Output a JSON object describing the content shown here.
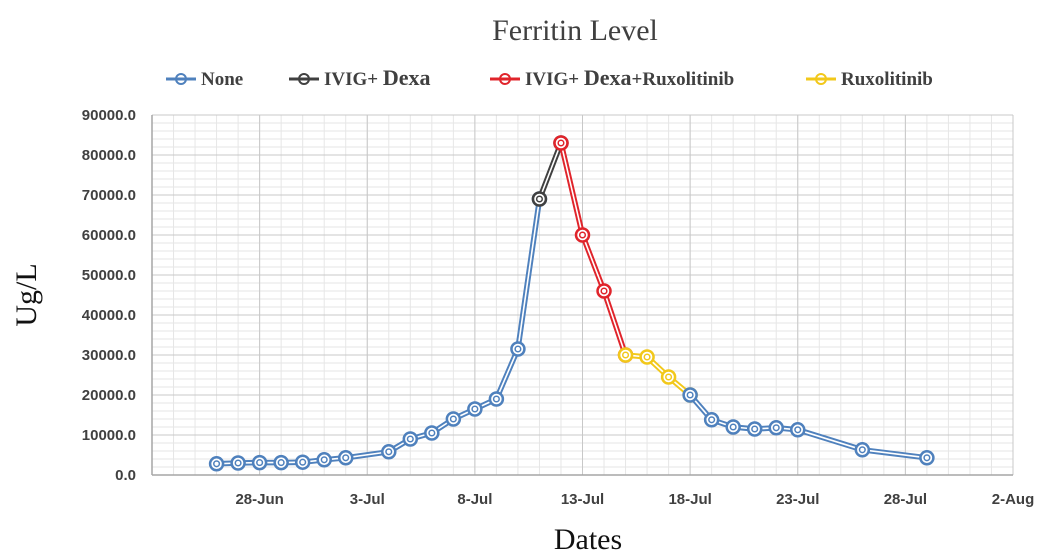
{
  "chart_data": {
    "type": "line",
    "title": "Ferritin Level",
    "xlabel": "Dates",
    "ylabel": "Ug/L",
    "ylim": [
      0,
      90000
    ],
    "y_ticks": [
      "0.0",
      "10000.0",
      "20000.0",
      "30000.0",
      "40000.0",
      "50000.0",
      "60000.0",
      "70000.0",
      "80000.0",
      "90000.0"
    ],
    "x_range": [
      "2020-06-23",
      "2020-08-02"
    ],
    "x_ticks": [
      {
        "date": "2020-06-28",
        "label": "28-Jun"
      },
      {
        "date": "2020-07-03",
        "label": "3-Jul"
      },
      {
        "date": "2020-07-08",
        "label": "8-Jul"
      },
      {
        "date": "2020-07-13",
        "label": "13-Jul"
      },
      {
        "date": "2020-07-18",
        "label": "18-Jul"
      },
      {
        "date": "2020-07-23",
        "label": "23-Jul"
      },
      {
        "date": "2020-07-28",
        "label": "28-Jul"
      },
      {
        "date": "2020-08-02",
        "label": "2-Aug"
      }
    ],
    "grid": true,
    "legend": "top",
    "series": [
      {
        "name": "None",
        "color": "#4f81bd",
        "points": [
          {
            "x": "2020-06-26",
            "y": 2800
          },
          {
            "x": "2020-06-27",
            "y": 3000
          },
          {
            "x": "2020-06-28",
            "y": 3100
          },
          {
            "x": "2020-06-29",
            "y": 3100
          },
          {
            "x": "2020-06-30",
            "y": 3200
          },
          {
            "x": "2020-07-01",
            "y": 3800
          },
          {
            "x": "2020-07-02",
            "y": 4300
          },
          {
            "x": "2020-07-04",
            "y": 5800
          },
          {
            "x": "2020-07-05",
            "y": 9000
          },
          {
            "x": "2020-07-06",
            "y": 10500
          },
          {
            "x": "2020-07-07",
            "y": 14000
          },
          {
            "x": "2020-07-08",
            "y": 16500
          },
          {
            "x": "2020-07-09",
            "y": 19000
          },
          {
            "x": "2020-07-10",
            "y": 31500
          },
          {
            "x": "2020-07-11",
            "y": 69000
          }
        ]
      },
      {
        "name": "IVIG+ Dexa",
        "color": "#404040",
        "points": [
          {
            "x": "2020-07-11",
            "y": 69000
          },
          {
            "x": "2020-07-12",
            "y": 83000
          }
        ]
      },
      {
        "name": "IVIG+ Dexa+Ruxolitinib",
        "color": "#e0242b",
        "points": [
          {
            "x": "2020-07-12",
            "y": 83000
          },
          {
            "x": "2020-07-13",
            "y": 60000
          },
          {
            "x": "2020-07-14",
            "y": 46000
          },
          {
            "x": "2020-07-15",
            "y": 30000
          }
        ]
      },
      {
        "name": "Ruxolitinib",
        "color": "#f2c81a",
        "points": [
          {
            "x": "2020-07-15",
            "y": 30000
          },
          {
            "x": "2020-07-16",
            "y": 29500
          },
          {
            "x": "2020-07-17",
            "y": 24500
          },
          {
            "x": "2020-07-18",
            "y": 20000
          }
        ]
      },
      {
        "name": "",
        "color": "#4f81bd",
        "points": [
          {
            "x": "2020-07-18",
            "y": 20000
          },
          {
            "x": "2020-07-19",
            "y": 13800
          },
          {
            "x": "2020-07-20",
            "y": 12000
          },
          {
            "x": "2020-07-21",
            "y": 11500
          },
          {
            "x": "2020-07-22",
            "y": 11800
          },
          {
            "x": "2020-07-23",
            "y": 11300
          },
          {
            "x": "2020-07-26",
            "y": 6300
          },
          {
            "x": "2020-07-29",
            "y": 4300
          }
        ]
      }
    ]
  }
}
